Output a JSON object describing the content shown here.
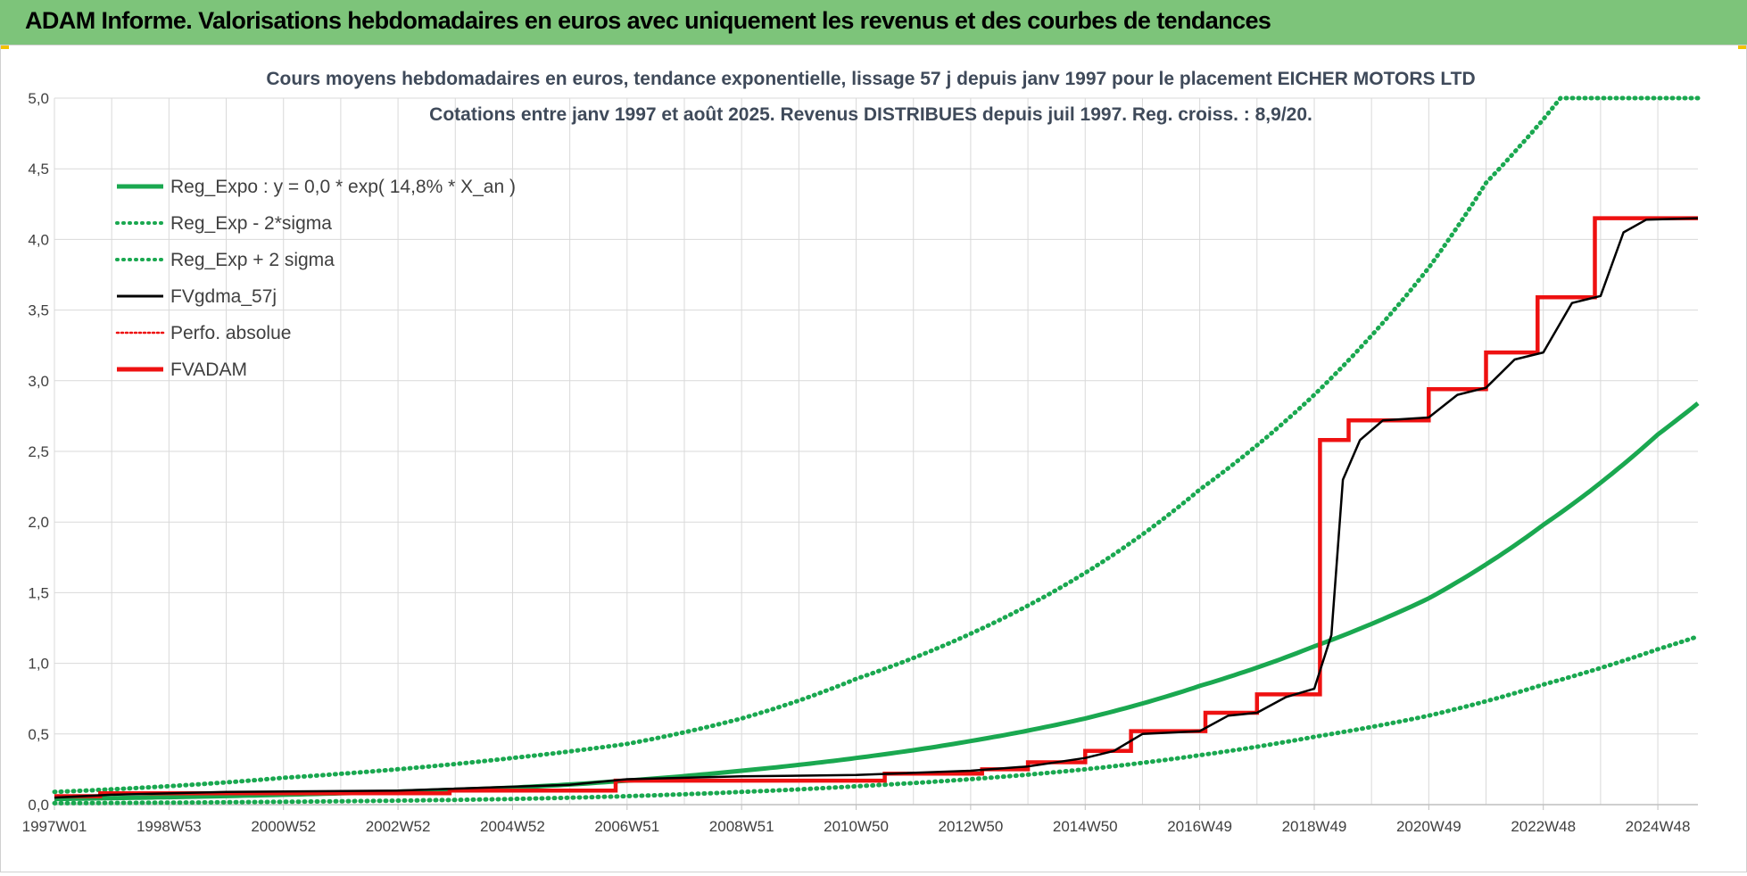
{
  "header": {
    "title": "ADAM Informe. Valorisations hebdomadaires en euros avec uniquement les revenus et des courbes de tendances"
  },
  "colors": {
    "header_bg": "#7dc47a",
    "green": "#1aa850",
    "black": "#000000",
    "red": "#ee1111",
    "grid": "#d9d9d9"
  },
  "chart_data": {
    "type": "line",
    "title_line1": "Cours moyens hebdomadaires en euros, tendance exponentielle, lissage 57 j depuis janv 1997  pour le placement EICHER MOTORS LTD",
    "title_line2": "Cotations entre janv 1997 et août 2025. Revenus DISTRIBUES depuis juil 1997.  Reg. croiss. : 8,9/20.",
    "ylim": [
      0,
      5
    ],
    "y_ticks": [
      "0,0",
      "0,5",
      "1,0",
      "1,5",
      "2,0",
      "2,5",
      "3,0",
      "3,5",
      "4,0",
      "4,5",
      "5,0"
    ],
    "x_ticks": [
      {
        "label": "1997W01",
        "year": 1997.0
      },
      {
        "label": "1998W53",
        "year": 1999.0
      },
      {
        "label": "2000W52",
        "year": 2001.0
      },
      {
        "label": "2002W52",
        "year": 2003.0
      },
      {
        "label": "2004W52",
        "year": 2005.0
      },
      {
        "label": "2006W51",
        "year": 2007.0
      },
      {
        "label": "2008W51",
        "year": 2009.0
      },
      {
        "label": "2010W50",
        "year": 2011.0
      },
      {
        "label": "2012W50",
        "year": 2013.0
      },
      {
        "label": "2014W50",
        "year": 2015.0
      },
      {
        "label": "2016W49",
        "year": 2017.0
      },
      {
        "label": "2018W49",
        "year": 2019.0
      },
      {
        "label": "2020W49",
        "year": 2021.0
      },
      {
        "label": "2022W48",
        "year": 2023.0
      },
      {
        "label": "2024W48",
        "year": 2025.0
      }
    ],
    "xlim": [
      1997.0,
      2025.7
    ],
    "legend": [
      {
        "label": "Reg_Expo : y = 0,0 * exp( 14,8% *  X_an )",
        "color": "#1aa850",
        "style": "solid-thick"
      },
      {
        "label": "Reg_Exp - 2*sigma",
        "color": "#1aa850",
        "style": "dotted"
      },
      {
        "label": "Reg_Exp + 2 sigma",
        "color": "#1aa850",
        "style": "dotted"
      },
      {
        "label": "FVgdma_57j",
        "color": "#000000",
        "style": "solid"
      },
      {
        "label": "Perfo. absolue",
        "color": "#ee1111",
        "style": "dotted"
      },
      {
        "label": "FVADAM",
        "color": "#ee1111",
        "style": "solid-thick"
      }
    ],
    "legend_placement": "top-left",
    "series": [
      {
        "name": "Reg_Expo : y = 0,0 * exp( 14,8% *  X_an )",
        "points": [
          [
            1997.0,
            0.04
          ],
          [
            2001,
            0.07
          ],
          [
            2005,
            0.12
          ],
          [
            2007,
            0.17
          ],
          [
            2009,
            0.24
          ],
          [
            2011,
            0.33
          ],
          [
            2013,
            0.45
          ],
          [
            2015,
            0.61
          ],
          [
            2017,
            0.84
          ],
          [
            2019,
            1.12
          ],
          [
            2021,
            1.46
          ],
          [
            2023,
            1.98
          ],
          [
            2025,
            2.62
          ],
          [
            2025.7,
            2.84
          ]
        ]
      },
      {
        "name": "Reg_Exp - 2*sigma",
        "points": [
          [
            1997.0,
            0.01
          ],
          [
            2001,
            0.02
          ],
          [
            2005,
            0.04
          ],
          [
            2007,
            0.06
          ],
          [
            2009,
            0.09
          ],
          [
            2011,
            0.13
          ],
          [
            2013,
            0.18
          ],
          [
            2015,
            0.25
          ],
          [
            2017,
            0.35
          ],
          [
            2019,
            0.48
          ],
          [
            2021,
            0.63
          ],
          [
            2023,
            0.85
          ],
          [
            2025,
            1.1
          ],
          [
            2025.7,
            1.19
          ]
        ]
      },
      {
        "name": "Reg_Exp + 2 sigma",
        "points": [
          [
            1997.0,
            0.09
          ],
          [
            2001,
            0.19
          ],
          [
            2005,
            0.33
          ],
          [
            2007,
            0.43
          ],
          [
            2009,
            0.61
          ],
          [
            2011,
            0.89
          ],
          [
            2013,
            1.21
          ],
          [
            2015,
            1.64
          ],
          [
            2017,
            2.23
          ],
          [
            2019,
            2.9
          ],
          [
            2021,
            3.8
          ],
          [
            2022,
            4.4
          ],
          [
            2023,
            4.85
          ],
          [
            2023.3,
            5.0
          ],
          [
            2025.7,
            5.0
          ]
        ]
      },
      {
        "name": "FVgdma_57j",
        "points": [
          [
            1997.0,
            0.05
          ],
          [
            1998,
            0.07
          ],
          [
            2000,
            0.09
          ],
          [
            2003,
            0.1
          ],
          [
            2006,
            0.14
          ],
          [
            2007,
            0.18
          ],
          [
            2009,
            0.2
          ],
          [
            2011,
            0.21
          ],
          [
            2013,
            0.24
          ],
          [
            2014,
            0.27
          ],
          [
            2015,
            0.33
          ],
          [
            2015.5,
            0.38
          ],
          [
            2016,
            0.5
          ],
          [
            2017,
            0.52
          ],
          [
            2017.5,
            0.63
          ],
          [
            2018,
            0.65
          ],
          [
            2018.5,
            0.76
          ],
          [
            2019,
            0.82
          ],
          [
            2019.3,
            1.2
          ],
          [
            2019.5,
            2.3
          ],
          [
            2019.8,
            2.58
          ],
          [
            2020.2,
            2.72
          ],
          [
            2021,
            2.74
          ],
          [
            2021.5,
            2.9
          ],
          [
            2022,
            2.95
          ],
          [
            2022.5,
            3.15
          ],
          [
            2023,
            3.2
          ],
          [
            2023.5,
            3.55
          ],
          [
            2024,
            3.6
          ],
          [
            2024.4,
            4.05
          ],
          [
            2024.8,
            4.14
          ],
          [
            2025.7,
            4.15
          ]
        ]
      },
      {
        "name": "FVADAM",
        "steps": [
          [
            1997.0,
            0.06
          ],
          [
            1997.8,
            0.08
          ],
          [
            2003.9,
            0.1
          ],
          [
            2006.8,
            0.17
          ],
          [
            2011.5,
            0.22
          ],
          [
            2013.2,
            0.25
          ],
          [
            2014.0,
            0.3
          ],
          [
            2015.0,
            0.38
          ],
          [
            2015.8,
            0.52
          ],
          [
            2017.1,
            0.65
          ],
          [
            2018.0,
            0.78
          ],
          [
            2019.1,
            2.58
          ],
          [
            2019.6,
            2.72
          ],
          [
            2021.0,
            2.94
          ],
          [
            2022.0,
            3.2
          ],
          [
            2022.9,
            3.59
          ],
          [
            2023.9,
            4.15
          ],
          [
            2025.7,
            4.15
          ]
        ]
      }
    ]
  }
}
